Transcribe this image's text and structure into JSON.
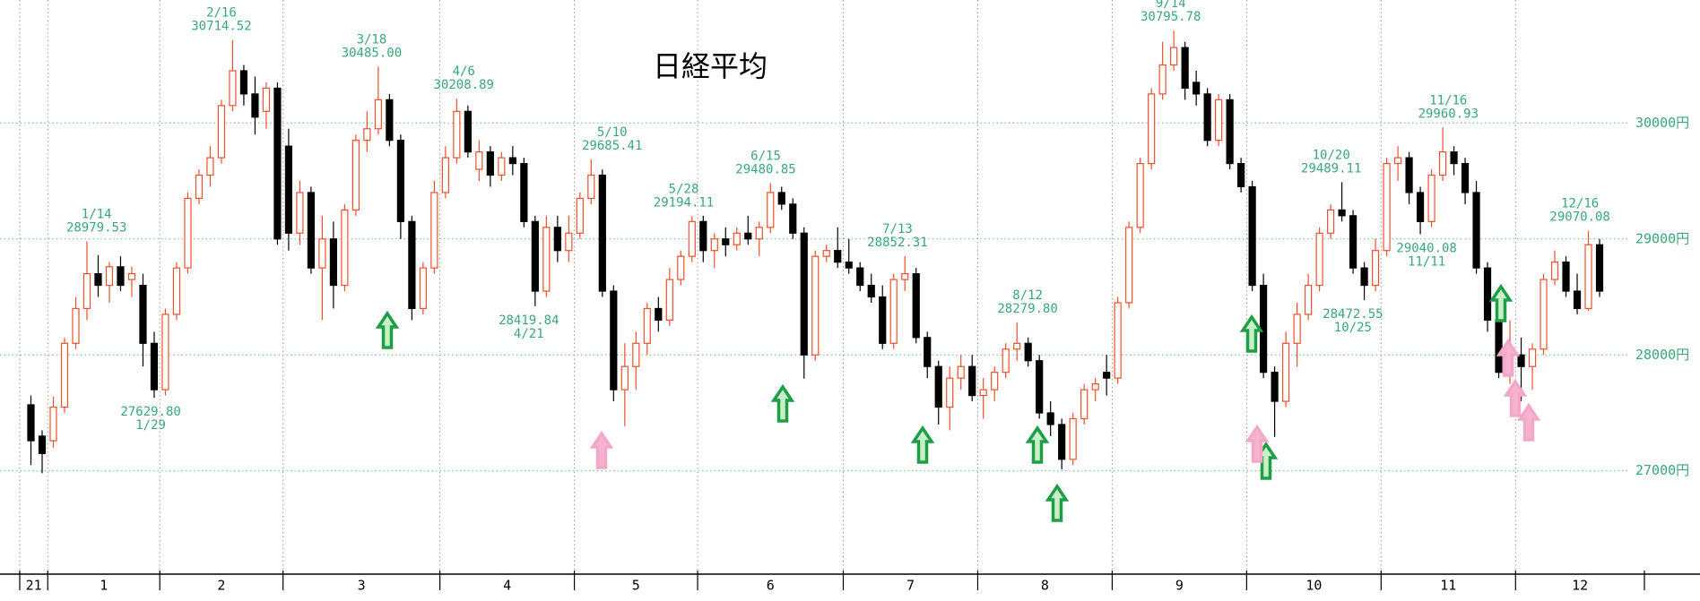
{
  "chart_data": {
    "type": "candlestick",
    "title": "日経平均",
    "up_color": "#f0502d",
    "down_color": "#000000",
    "grid": true,
    "xlim": [
      -1,
      144
    ],
    "xticks": [
      {
        "value": -1,
        "label": "21"
      },
      {
        "value": 1.5,
        "label": "1"
      },
      {
        "value": 11.5,
        "label": "2"
      },
      {
        "value": 22.5,
        "label": "3"
      },
      {
        "value": 36.5,
        "label": "4"
      },
      {
        "value": 48.5,
        "label": "5"
      },
      {
        "value": 59.5,
        "label": "6"
      },
      {
        "value": 72.5,
        "label": "7"
      },
      {
        "value": 84.5,
        "label": "8"
      },
      {
        "value": 96.5,
        "label": "9"
      },
      {
        "value": 108.5,
        "label": "10"
      },
      {
        "value": 120.5,
        "label": "11"
      },
      {
        "value": 132.5,
        "label": "12"
      }
    ],
    "ylim": [
      26110,
      31060
    ],
    "yticks": [
      {
        "value": 27000,
        "label": "27000円"
      },
      {
        "value": 28000,
        "label": "28000円"
      },
      {
        "value": 29000,
        "label": "29000円"
      },
      {
        "value": 30000,
        "label": "30000円"
      }
    ],
    "candles": [
      [
        27570,
        27650,
        27050,
        27260
      ],
      [
        27300,
        27350,
        26980,
        27150
      ],
      [
        27260,
        27640,
        27200,
        27550
      ],
      [
        27550,
        28150,
        27500,
        28100
      ],
      [
        28100,
        28500,
        28050,
        28400
      ],
      [
        28400,
        28979.53,
        28300,
        28700
      ],
      [
        28700,
        28860,
        28500,
        28600
      ],
      [
        28600,
        28800,
        28450,
        28760
      ],
      [
        28760,
        28850,
        28550,
        28600
      ],
      [
        28650,
        28760,
        28500,
        28700
      ],
      [
        28600,
        28700,
        27900,
        28100
      ],
      [
        28100,
        28200,
        27629.8,
        27700
      ],
      [
        27700,
        28400,
        27650,
        28350
      ],
      [
        28350,
        28800,
        28300,
        28750
      ],
      [
        28750,
        29400,
        28700,
        29350
      ],
      [
        29350,
        29600,
        29300,
        29550
      ],
      [
        29550,
        29800,
        29450,
        29700
      ],
      [
        29700,
        30200,
        29650,
        30150
      ],
      [
        30150,
        30714.52,
        30100,
        30450
      ],
      [
        30450,
        30500,
        30150,
        30250
      ],
      [
        30250,
        30400,
        29900,
        30050
      ],
      [
        30100,
        30350,
        29950,
        30300
      ],
      [
        30300,
        30350,
        28950,
        29000
      ],
      [
        29800,
        29950,
        28900,
        29050
      ],
      [
        29050,
        29500,
        28950,
        29400
      ],
      [
        29400,
        29450,
        28700,
        28750
      ],
      [
        28750,
        29200,
        28300,
        29000
      ],
      [
        29000,
        29150,
        28400,
        28600
      ],
      [
        28600,
        29300,
        28550,
        29250
      ],
      [
        29250,
        29900,
        29200,
        29850
      ],
      [
        29850,
        30100,
        29750,
        29950
      ],
      [
        29950,
        30485,
        29900,
        30200
      ],
      [
        30200,
        30250,
        29800,
        29850
      ],
      [
        29850,
        29900,
        29000,
        29150
      ],
      [
        29150,
        29200,
        28300,
        28400
      ],
      [
        28400,
        28800,
        28350,
        28750
      ],
      [
        28750,
        29500,
        28700,
        29400
      ],
      [
        29400,
        29800,
        29350,
        29700
      ],
      [
        29700,
        30208.89,
        29650,
        30100
      ],
      [
        30100,
        30150,
        29700,
        29750
      ],
      [
        29600,
        29850,
        29500,
        29750
      ],
      [
        29750,
        29800,
        29450,
        29550
      ],
      [
        29550,
        29750,
        29500,
        29700
      ],
      [
        29700,
        29800,
        29550,
        29650
      ],
      [
        29650,
        29700,
        29100,
        29150
      ],
      [
        29150,
        29200,
        28419.84,
        28550
      ],
      [
        28550,
        29200,
        28500,
        29100
      ],
      [
        29100,
        29200,
        28800,
        28900
      ],
      [
        28900,
        29200,
        28800,
        29050
      ],
      [
        29050,
        29400,
        29000,
        29350
      ],
      [
        29350,
        29685.41,
        29300,
        29550
      ],
      [
        29550,
        29600,
        28500,
        28550
      ],
      [
        28550,
        28600,
        27600,
        27700
      ],
      [
        27700,
        28100,
        27385,
        27900
      ],
      [
        27900,
        28200,
        27700,
        28100
      ],
      [
        28100,
        28450,
        28000,
        28400
      ],
      [
        28400,
        28500,
        28200,
        28300
      ],
      [
        28300,
        28750,
        28250,
        28650
      ],
      [
        28650,
        28900,
        28600,
        28850
      ],
      [
        28850,
        29194.11,
        28800,
        29150
      ],
      [
        29150,
        29200,
        28800,
        28900
      ],
      [
        28900,
        29050,
        28750,
        29000
      ],
      [
        29000,
        29100,
        28850,
        28950
      ],
      [
        28950,
        29100,
        28900,
        29050
      ],
      [
        29050,
        29200,
        28950,
        29000
      ],
      [
        29000,
        29150,
        28850,
        29100
      ],
      [
        29100,
        29480.85,
        29050,
        29400
      ],
      [
        29400,
        29450,
        29250,
        29300
      ],
      [
        29300,
        29350,
        29000,
        29050
      ],
      [
        29050,
        29100,
        27795,
        28000
      ],
      [
        28000,
        28900,
        27950,
        28850
      ],
      [
        28850,
        28950,
        28800,
        28900
      ],
      [
        28900,
        29100,
        28750,
        28800
      ],
      [
        28800,
        29000,
        28700,
        28750
      ],
      [
        28750,
        28800,
        28550,
        28600
      ],
      [
        28600,
        28700,
        28450,
        28500
      ],
      [
        28500,
        28600,
        28050,
        28100
      ],
      [
        28100,
        28700,
        28050,
        28650
      ],
      [
        28650,
        28852.31,
        28550,
        28700
      ],
      [
        28700,
        28750,
        28100,
        28150
      ],
      [
        28150,
        28200,
        27800,
        27900
      ],
      [
        27900,
        27950,
        27400,
        27550
      ],
      [
        27550,
        27900,
        27350,
        27800
      ],
      [
        27800,
        28000,
        27700,
        27900
      ],
      [
        27900,
        28000,
        27600,
        27650
      ],
      [
        27650,
        27800,
        27450,
        27700
      ],
      [
        27700,
        27900,
        27600,
        27850
      ],
      [
        27850,
        28100,
        27800,
        28050
      ],
      [
        28050,
        28279.8,
        27950,
        28100
      ],
      [
        28100,
        28150,
        27900,
        27950
      ],
      [
        27950,
        28000,
        27450,
        27500
      ],
      [
        27500,
        27600,
        27300,
        27400
      ],
      [
        27400,
        27450,
        27013,
        27100
      ],
      [
        27100,
        27500,
        27050,
        27450
      ],
      [
        27450,
        27750,
        27400,
        27700
      ],
      [
        27700,
        27800,
        27600,
        27750
      ],
      [
        27850,
        28000,
        27650,
        27800
      ],
      [
        27800,
        28500,
        27750,
        28450
      ],
      [
        28450,
        29150,
        28400,
        29100
      ],
      [
        29100,
        29700,
        29050,
        29650
      ],
      [
        29650,
        30300,
        29600,
        30250
      ],
      [
        30250,
        30700,
        30200,
        30500
      ],
      [
        30500,
        30795.78,
        30450,
        30650
      ],
      [
        30650,
        30700,
        30200,
        30300
      ],
      [
        30350,
        30450,
        30150,
        30250
      ],
      [
        30250,
        30300,
        29800,
        29850
      ],
      [
        29850,
        30250,
        29800,
        30200
      ],
      [
        30200,
        30250,
        29600,
        29650
      ],
      [
        29650,
        29700,
        29400,
        29450
      ],
      [
        29450,
        29500,
        28550,
        28600
      ],
      [
        28600,
        28700,
        27800,
        27850
      ],
      [
        27850,
        27900,
        27293,
        27600
      ],
      [
        27600,
        28200,
        27550,
        28100
      ],
      [
        28100,
        28450,
        27900,
        28350
      ],
      [
        28350,
        28700,
        28300,
        28600
      ],
      [
        28600,
        29100,
        28550,
        29050
      ],
      [
        29050,
        29300,
        29000,
        29250
      ],
      [
        29250,
        29489.11,
        29150,
        29200
      ],
      [
        29200,
        29250,
        28700,
        28750
      ],
      [
        28750,
        28800,
        28472.55,
        28600
      ],
      [
        28600,
        29000,
        28550,
        28900
      ],
      [
        28900,
        29700,
        28850,
        29650
      ],
      [
        29650,
        29800,
        29500,
        29700
      ],
      [
        29700,
        29750,
        29300,
        29400
      ],
      [
        29400,
        29450,
        29040.08,
        29150
      ],
      [
        29150,
        29600,
        29100,
        29550
      ],
      [
        29550,
        29960.93,
        29500,
        29750
      ],
      [
        29750,
        29800,
        29550,
        29650
      ],
      [
        29650,
        29700,
        29300,
        29400
      ],
      [
        29400,
        29500,
        28700,
        28750
      ],
      [
        28750,
        28800,
        28200,
        28300
      ],
      [
        28300,
        28400,
        27800,
        27850
      ],
      [
        27850,
        28300,
        27750,
        28000
      ],
      [
        28000,
        28150,
        27600,
        27900
      ],
      [
        27900,
        28100,
        27700,
        28050
      ],
      [
        28050,
        28700,
        28000,
        28650
      ],
      [
        28650,
        28900,
        28600,
        28800
      ],
      [
        28800,
        28850,
        28500,
        28550
      ],
      [
        28550,
        28700,
        28350,
        28400
      ],
      [
        28400,
        29070.08,
        28380,
        28950
      ],
      [
        28950,
        29000,
        28500,
        28550
      ]
    ],
    "annotations": [
      {
        "date": "1/14",
        "value": 28979.53,
        "position": "above"
      },
      {
        "date": "1/29",
        "value": 27629.8,
        "value_label": "27629.80",
        "position": "below"
      },
      {
        "date": "2/16",
        "value": 30714.52,
        "position": "above"
      },
      {
        "date": "3/18",
        "value": 30485,
        "value_label": "30485.00",
        "position": "above"
      },
      {
        "date": "4/6",
        "value": 30208.89,
        "position": "above"
      },
      {
        "date": "4/21",
        "value": 28419.84,
        "position": "below"
      },
      {
        "date": "5/10",
        "value": 29685.41,
        "position": "above"
      },
      {
        "date": "5/28",
        "value": 29194.11,
        "position": "above"
      },
      {
        "date": "6/15",
        "value": 29480.85,
        "position": "above"
      },
      {
        "date": "7/13",
        "value": 28852.31,
        "position": "above"
      },
      {
        "date": "8/12",
        "value": 28279.8,
        "value_label": "28279.80",
        "position": "above"
      },
      {
        "date": "9/14",
        "value": 30795.78,
        "position": "above"
      },
      {
        "date": "10/20",
        "value": 29489.11,
        "position": "above"
      },
      {
        "date": "10/25",
        "value": 28472.55,
        "position": "below"
      },
      {
        "date": "11/16",
        "value": 29960.93,
        "position": "above"
      },
      {
        "date": "11/11",
        "value": 29040.08,
        "position": "below"
      },
      {
        "date": "12/16",
        "value": 29070.08,
        "position": "above"
      }
    ]
  }
}
